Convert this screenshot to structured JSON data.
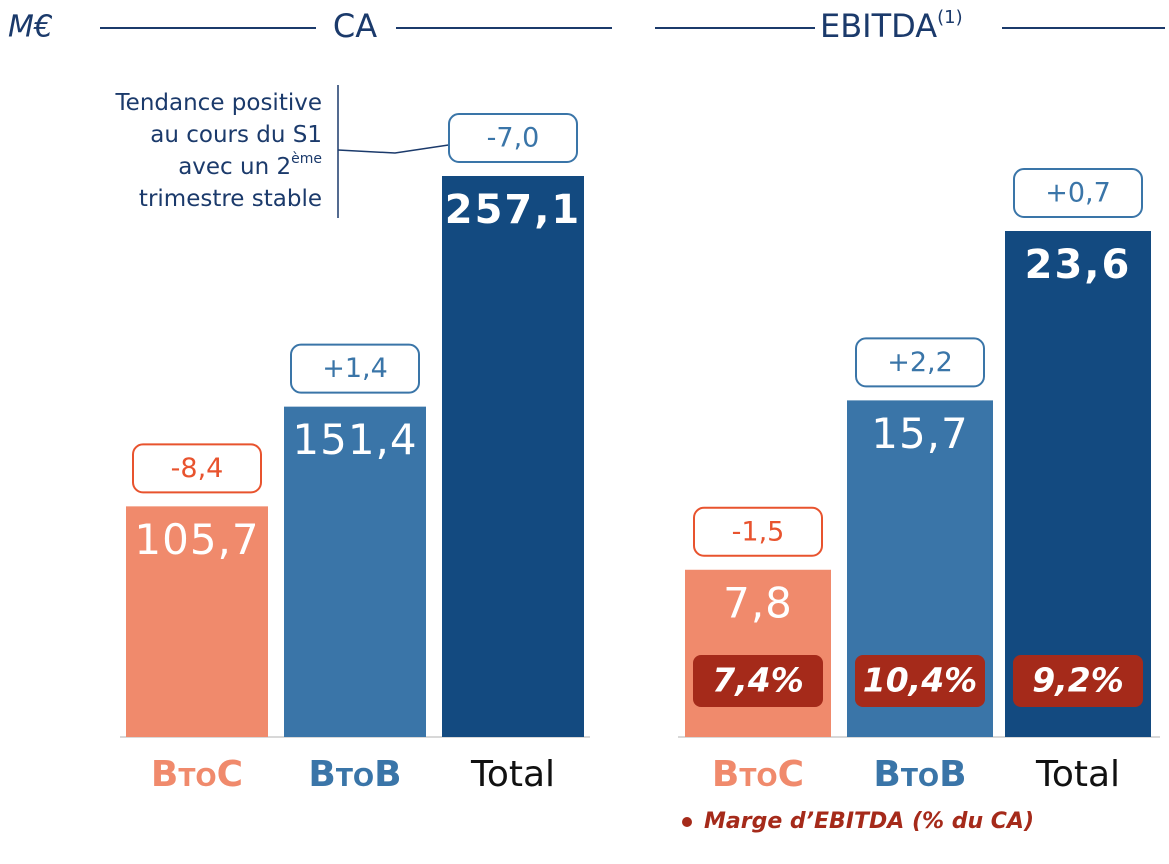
{
  "chart_data": [
    {
      "type": "bar",
      "unit": "M€",
      "title": "CA",
      "categories": [
        "BtoC",
        "BtoB",
        "Total"
      ],
      "values": [
        105.7,
        151.4,
        257.1
      ],
      "value_labels": [
        "105,7",
        "151,4",
        "257,1"
      ],
      "changes": [
        -8.4,
        1.4,
        -7.0
      ],
      "change_labels": [
        "-8,4",
        "+1,4",
        "-7,0"
      ],
      "colors": [
        "#f08a6c",
        "#3a75a8",
        "#134a80"
      ],
      "annotation": {
        "lines": [
          "Tendance positive",
          "au cours du S1",
          "avec un 2",
          "trimestre stable"
        ],
        "superscript": "ème"
      }
    },
    {
      "type": "bar",
      "title": "EBITDA",
      "title_superscript": "(1)",
      "categories": [
        "BtoC",
        "BtoB",
        "Total"
      ],
      "values": [
        7.8,
        15.7,
        23.6
      ],
      "value_labels": [
        "7,8",
        "15,7",
        "23,6"
      ],
      "changes": [
        -1.5,
        2.2,
        0.7
      ],
      "change_labels": [
        "-1,5",
        "+2,2",
        "+0,7"
      ],
      "margins": [
        7.4,
        10.4,
        9.2
      ],
      "margin_labels": [
        "7,4%",
        "10,4%",
        "9,2%"
      ],
      "colors": [
        "#f08a6c",
        "#3a75a8",
        "#134a80"
      ],
      "legend": "Marge d’EBITDA (% du CA)"
    }
  ]
}
